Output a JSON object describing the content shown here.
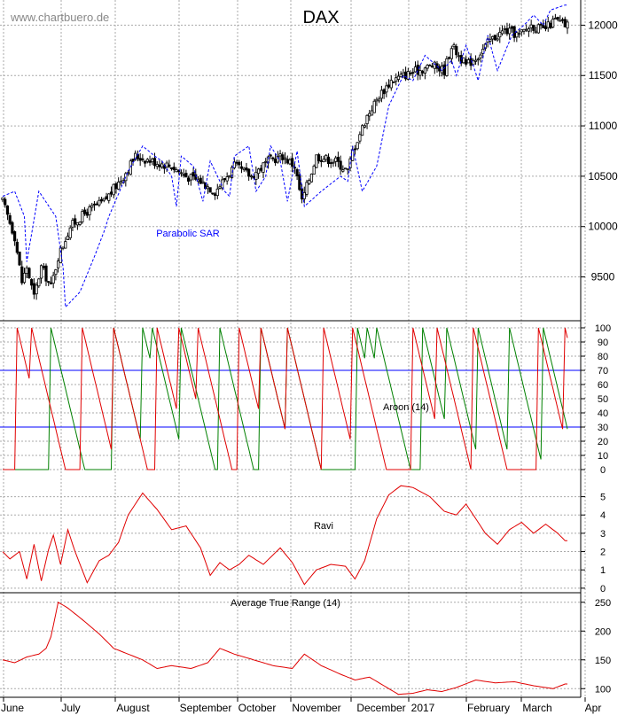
{
  "watermark": "www.chartbuero.de",
  "chart_data": [
    {
      "type": "candlestick",
      "panel": "price",
      "title": "DAX",
      "annotation": "Parabolic SAR",
      "ylim": [
        9100,
        12250
      ],
      "yticks": [
        9500,
        10000,
        10500,
        11000,
        11500,
        12000
      ],
      "x_months": [
        "June",
        "July",
        "August",
        "September",
        "October",
        "November",
        "December",
        "2017",
        "February",
        "March",
        "Apr"
      ],
      "close_anchors": [
        [
          0,
          10250
        ],
        [
          5,
          9900
        ],
        [
          8,
          9450
        ],
        [
          10,
          9600
        ],
        [
          13,
          9300
        ],
        [
          16,
          9600
        ],
        [
          20,
          9400
        ],
        [
          23,
          9700
        ],
        [
          28,
          10000
        ],
        [
          35,
          10150
        ],
        [
          42,
          10250
        ],
        [
          50,
          10500
        ],
        [
          55,
          10700
        ],
        [
          62,
          10650
        ],
        [
          70,
          10600
        ],
        [
          76,
          10500
        ],
        [
          82,
          10450
        ],
        [
          88,
          10350
        ],
        [
          96,
          10600
        ],
        [
          103,
          10500
        ],
        [
          110,
          10650
        ],
        [
          116,
          10700
        ],
        [
          121,
          10600
        ],
        [
          124,
          10250
        ],
        [
          130,
          10700
        ],
        [
          138,
          10650
        ],
        [
          143,
          10550
        ],
        [
          145,
          10750
        ],
        [
          151,
          11100
        ],
        [
          156,
          11300
        ],
        [
          161,
          11450
        ],
        [
          166,
          11500
        ],
        [
          172,
          11550
        ],
        [
          178,
          11600
        ],
        [
          183,
          11550
        ],
        [
          186,
          11800
        ],
        [
          192,
          11600
        ],
        [
          197,
          11700
        ],
        [
          202,
          11850
        ],
        [
          208,
          11950
        ],
        [
          214,
          11900
        ],
        [
          219,
          12000
        ],
        [
          224,
          11950
        ],
        [
          229,
          12050
        ],
        [
          233,
          12000
        ]
      ],
      "sar_anchors": [
        [
          0,
          10300
        ],
        [
          5,
          10350
        ],
        [
          9,
          10100
        ],
        [
          10,
          9650
        ],
        [
          15,
          10350
        ],
        [
          22,
          10100
        ],
        [
          25,
          9600
        ],
        [
          26,
          9200
        ],
        [
          32,
          9350
        ],
        [
          38,
          9700
        ],
        [
          42,
          9950
        ],
        [
          44,
          10100
        ],
        [
          52,
          10550
        ],
        [
          58,
          10800
        ],
        [
          63,
          10700
        ],
        [
          66,
          10650
        ],
        [
          70,
          10500
        ],
        [
          72,
          10200
        ],
        [
          74,
          10700
        ],
        [
          79,
          10600
        ],
        [
          83,
          10250
        ],
        [
          86,
          10650
        ],
        [
          92,
          10350
        ],
        [
          94,
          10300
        ],
        [
          96,
          10700
        ],
        [
          102,
          10800
        ],
        [
          105,
          10350
        ],
        [
          109,
          10500
        ],
        [
          111,
          10800
        ],
        [
          115,
          10650
        ],
        [
          118,
          10250
        ],
        [
          122,
          10750
        ],
        [
          125,
          10200
        ],
        [
          132,
          10350
        ],
        [
          140,
          10500
        ],
        [
          143,
          10450
        ],
        [
          145,
          10800
        ],
        [
          149,
          10350
        ],
        [
          155,
          10600
        ],
        [
          160,
          11200
        ],
        [
          166,
          11500
        ],
        [
          170,
          11450
        ],
        [
          175,
          11700
        ],
        [
          182,
          11550
        ],
        [
          186,
          11650
        ],
        [
          188,
          11500
        ],
        [
          192,
          11800
        ],
        [
          195,
          11600
        ],
        [
          197,
          11450
        ],
        [
          201,
          11900
        ],
        [
          205,
          11550
        ],
        [
          211,
          11900
        ],
        [
          216,
          12000
        ],
        [
          220,
          12100
        ],
        [
          224,
          12000
        ],
        [
          227,
          12150
        ],
        [
          233,
          12200
        ]
      ]
    },
    {
      "type": "line",
      "panel": "aroon",
      "label": "Aroon (14)",
      "ylim": [
        0,
        100
      ],
      "yticks": [
        0,
        10,
        20,
        30,
        40,
        50,
        60,
        70,
        80,
        90,
        100
      ],
      "levels": [
        30,
        70
      ],
      "series": [
        {
          "color": "#008000",
          "pattern": "aroon-up",
          "cycles_peaks": [
            20,
            46,
            58,
            62,
            74,
            90,
            107,
            118,
            147,
            151,
            155,
            174,
            184,
            197,
            210,
            224
          ]
        },
        {
          "color": "#e00000",
          "pattern": "aroon-down",
          "cycles_peaks": [
            6,
            12,
            33,
            46,
            64,
            73,
            81,
            98,
            107,
            118,
            133,
            145,
            170,
            180,
            195,
            222,
            233
          ]
        }
      ]
    },
    {
      "type": "line",
      "panel": "ravi",
      "label": "Ravi",
      "ylim": [
        -0.2,
        5.9
      ],
      "yticks": [
        0,
        1,
        2,
        3,
        4,
        5
      ],
      "color": "#e00000",
      "anchors": [
        [
          0,
          2.0
        ],
        [
          3,
          1.6
        ],
        [
          7,
          2.0
        ],
        [
          10,
          0.5
        ],
        [
          13,
          2.4
        ],
        [
          16,
          0.4
        ],
        [
          19,
          2.1
        ],
        [
          21,
          2.9
        ],
        [
          24,
          1.3
        ],
        [
          27,
          3.2
        ],
        [
          30,
          2.0
        ],
        [
          35,
          0.3
        ],
        [
          40,
          1.5
        ],
        [
          44,
          1.8
        ],
        [
          48,
          2.5
        ],
        [
          52,
          4.0
        ],
        [
          58,
          5.2
        ],
        [
          64,
          4.3
        ],
        [
          70,
          3.2
        ],
        [
          76,
          3.4
        ],
        [
          82,
          2.2
        ],
        [
          86,
          0.7
        ],
        [
          90,
          1.4
        ],
        [
          94,
          1.0
        ],
        [
          98,
          1.3
        ],
        [
          102,
          1.8
        ],
        [
          108,
          1.3
        ],
        [
          115,
          2.2
        ],
        [
          120,
          1.4
        ],
        [
          125,
          0.2
        ],
        [
          130,
          1.0
        ],
        [
          136,
          1.3
        ],
        [
          142,
          1.2
        ],
        [
          146,
          0.5
        ],
        [
          150,
          1.5
        ],
        [
          155,
          3.8
        ],
        [
          160,
          5.1
        ],
        [
          165,
          5.6
        ],
        [
          170,
          5.5
        ],
        [
          177,
          5.0
        ],
        [
          183,
          4.2
        ],
        [
          188,
          4.0
        ],
        [
          192,
          4.6
        ],
        [
          196,
          3.8
        ],
        [
          200,
          3.0
        ],
        [
          205,
          2.4
        ],
        [
          210,
          3.2
        ],
        [
          215,
          3.6
        ],
        [
          220,
          3.0
        ],
        [
          225,
          3.5
        ],
        [
          230,
          3.0
        ],
        [
          233,
          2.6
        ]
      ]
    },
    {
      "type": "line",
      "panel": "atr",
      "label": "Average True Range (14)",
      "ylim": [
        85,
        265
      ],
      "yticks": [
        100,
        150,
        200,
        250
      ],
      "color": "#e00000",
      "anchors": [
        [
          0,
          150
        ],
        [
          5,
          145
        ],
        [
          10,
          155
        ],
        [
          15,
          160
        ],
        [
          18,
          170
        ],
        [
          20,
          190
        ],
        [
          23,
          250
        ],
        [
          27,
          240
        ],
        [
          33,
          220
        ],
        [
          40,
          195
        ],
        [
          46,
          170
        ],
        [
          52,
          160
        ],
        [
          58,
          150
        ],
        [
          64,
          135
        ],
        [
          70,
          140
        ],
        [
          78,
          135
        ],
        [
          85,
          145
        ],
        [
          90,
          170
        ],
        [
          96,
          160
        ],
        [
          104,
          150
        ],
        [
          112,
          140
        ],
        [
          120,
          135
        ],
        [
          125,
          160
        ],
        [
          132,
          140
        ],
        [
          140,
          125
        ],
        [
          146,
          115
        ],
        [
          152,
          120
        ],
        [
          158,
          105
        ],
        [
          164,
          90
        ],
        [
          170,
          92
        ],
        [
          176,
          98
        ],
        [
          182,
          95
        ],
        [
          188,
          102
        ],
        [
          196,
          115
        ],
        [
          204,
          110
        ],
        [
          212,
          112
        ],
        [
          220,
          105
        ],
        [
          228,
          100
        ],
        [
          233,
          108
        ]
      ]
    }
  ]
}
